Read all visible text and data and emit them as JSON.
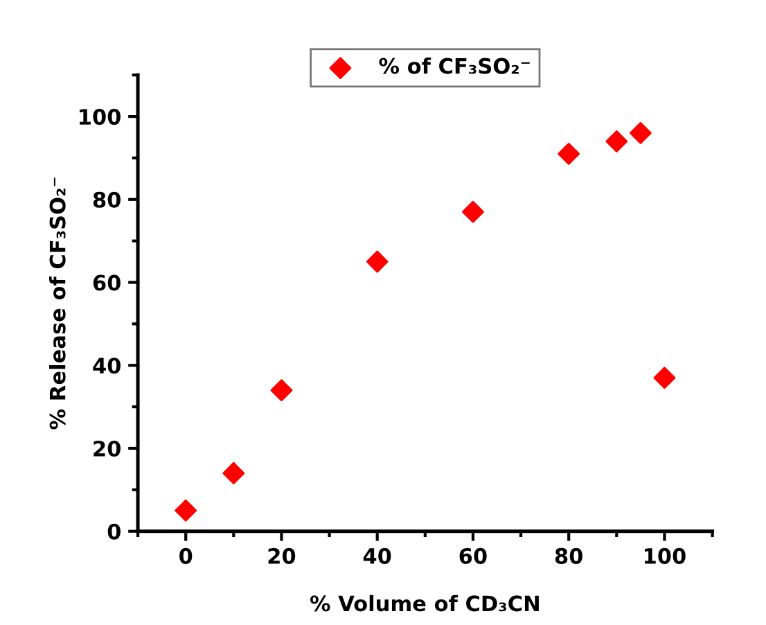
{
  "chart_data": {
    "type": "scatter",
    "xlabel": "% Volume of CD₃CN",
    "ylabel": "% Release of CF₃SO₂⁻",
    "x": [
      0,
      10,
      20,
      40,
      60,
      80,
      90,
      95,
      100
    ],
    "series": [
      {
        "name": "% of CF₃SO₂⁻",
        "color": "#ff0000",
        "values": [
          5,
          14,
          34,
          65,
          77,
          91,
          94,
          96,
          37
        ]
      }
    ],
    "xlim": [
      -10,
      110
    ],
    "xticks": [
      0,
      20,
      40,
      60,
      80,
      100
    ],
    "ylim": [
      0,
      110
    ],
    "yticks": [
      0,
      20,
      40,
      60,
      80,
      100
    ],
    "marker": "diamond",
    "legend": "top",
    "grid": false
  }
}
